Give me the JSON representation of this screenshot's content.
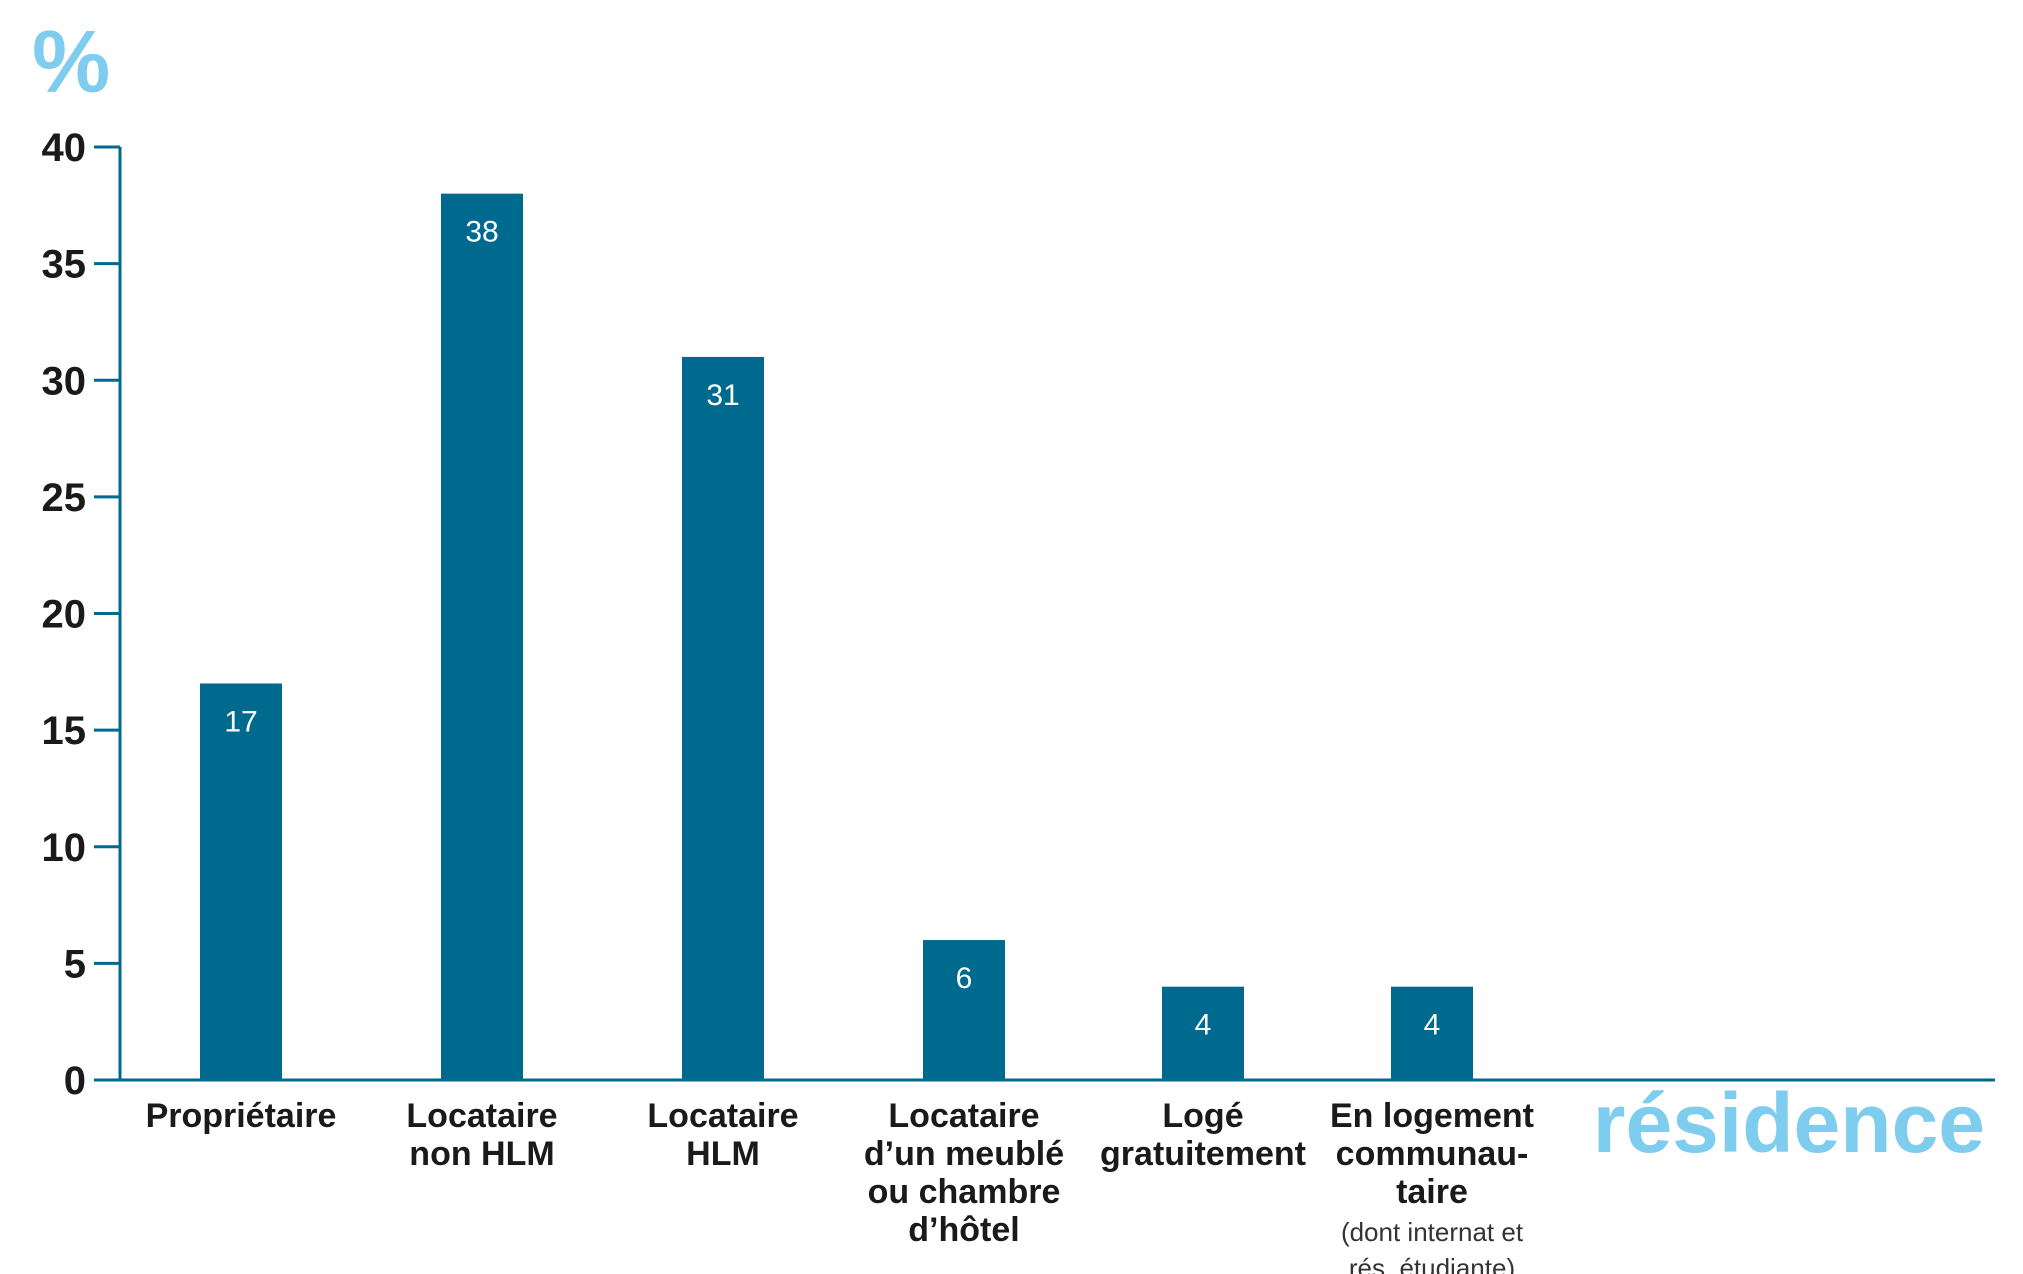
{
  "colors": {
    "bar": "#006a8e",
    "axis": "#006a8e",
    "accent": "#7fcdee"
  },
  "chart_data": {
    "type": "bar",
    "unit_label": "%",
    "xlabel": "résidence",
    "ylabel": "",
    "ylim": [
      0,
      40
    ],
    "yticks": [
      0,
      5,
      10,
      15,
      20,
      25,
      30,
      35,
      40
    ],
    "categories": [
      {
        "lines": [
          "Propriétaire"
        ],
        "note": []
      },
      {
        "lines": [
          "Locataire",
          "non HLM"
        ],
        "note": []
      },
      {
        "lines": [
          "Locataire",
          "HLM"
        ],
        "note": []
      },
      {
        "lines": [
          "Locataire",
          "d’un meublé",
          "ou chambre",
          "d’hôtel"
        ],
        "note": []
      },
      {
        "lines": [
          "Logé",
          "gratuitement"
        ],
        "note": []
      },
      {
        "lines": [
          "En logement",
          "communau-",
          "taire"
        ],
        "note": [
          "(dont internat et",
          "rés. étudiante)"
        ]
      }
    ],
    "values": [
      17,
      38,
      31,
      6,
      4,
      4
    ],
    "value_labels": [
      "17",
      "38",
      "31",
      "6",
      "4",
      "4"
    ],
    "grid": false,
    "legend": "none"
  }
}
